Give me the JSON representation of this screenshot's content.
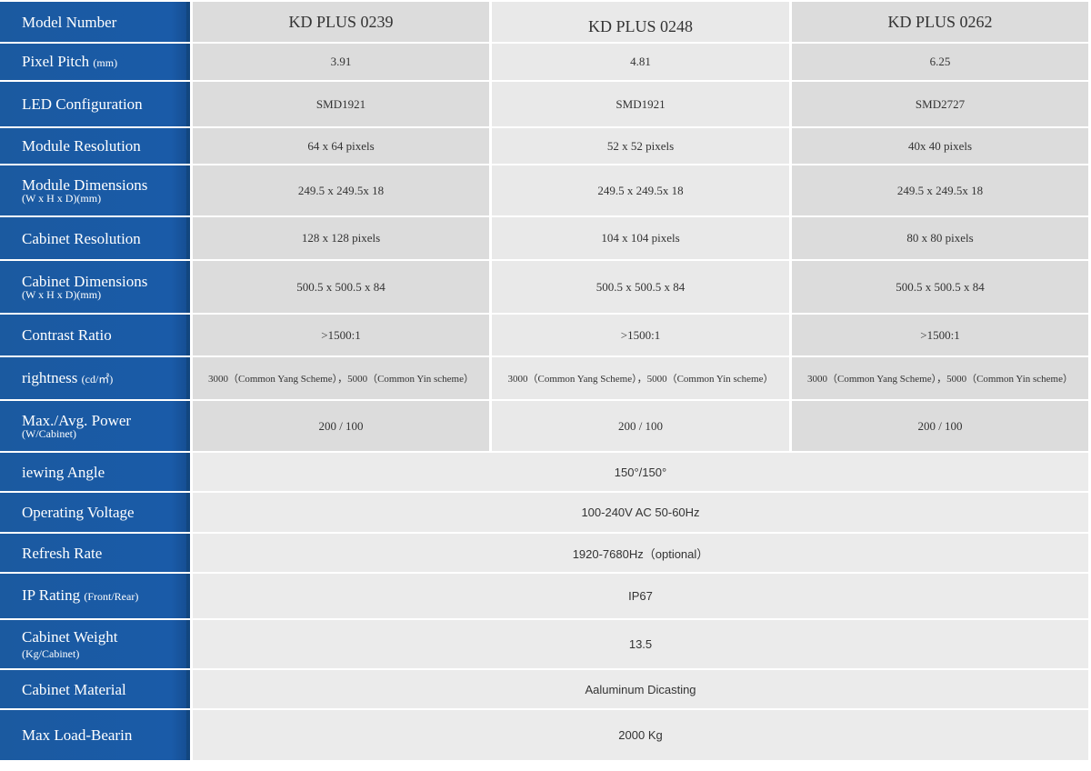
{
  "models": [
    "KD PLUS 0239",
    "KD PLUS 0248",
    "KD PLUS 0262"
  ],
  "rows": [
    {
      "label": "Pixel Pitch",
      "unit": "(mm)",
      "values": [
        "3.91",
        "4.81",
        "6.25"
      ]
    },
    {
      "label": "LED Configuration",
      "values": [
        "SMD1921",
        "SMD1921",
        "SMD2727"
      ]
    },
    {
      "label": "Module Resolution",
      "values": [
        "64 x 64 pixels",
        "52 x 52 pixels",
        "40x 40 pixels"
      ]
    },
    {
      "label": "Module Dimensions",
      "unit": "(W x H x D)(mm)",
      "values": [
        "249.5 x 249.5x 18",
        "249.5 x 249.5x 18",
        "249.5 x 249.5x 18"
      ]
    },
    {
      "label": "Cabinet Resolution",
      "values": [
        "128 x 128 pixels",
        "104  x 104 pixels",
        "80 x 80 pixels"
      ]
    },
    {
      "label": "Cabinet Dimensions",
      "unit": "(W x H x D)(mm)",
      "values": [
        "500.5 x 500.5 x 84",
        "500.5 x 500.5 x 84",
        "500.5 x 500.5 x 84"
      ]
    },
    {
      "label": "Contrast Ratio",
      "values": [
        ">1500:1",
        ">1500:1",
        ">1500:1"
      ]
    },
    {
      "label": "rightness",
      "unit": "(cd/㎡)",
      "values": [
        "3000（Common Yang Scheme），5000（Common Yin scheme）",
        "3000（Common Yang Scheme），5000（Common Yin scheme）",
        "3000（Common Yang Scheme），5000（Common Yin scheme）"
      ]
    },
    {
      "label": "Max./Avg. Power",
      "unit": "(W/Cabinet)",
      "values": [
        "200 / 100",
        "200 / 100",
        "200 / 100"
      ]
    }
  ],
  "header_label": "Model Number",
  "shared_rows": [
    {
      "label": "iewing Angle",
      "value": "150°/150°"
    },
    {
      "label": "Operating Voltage",
      "value": "100-240V AC  50-60Hz"
    },
    {
      "label": "Refresh Rate",
      "value": "1920-7680Hz（optional）"
    },
    {
      "label": "IP Rating",
      "unit": "(Front/Rear)",
      "value": "IP67"
    },
    {
      "label": "Cabinet Weight",
      "unit": "(Kg/Cabinet)",
      "value": "13.5"
    },
    {
      "label": "Cabinet Material",
      "value": "Aaluminum Dicasting"
    },
    {
      "label": "Max Load-Bearin",
      "value": "2000 Kg"
    }
  ],
  "colors": {
    "label_bg": "#1b5aa3",
    "cell_gray": "#dcdcdc",
    "cell_light": "#e9e9e9"
  }
}
